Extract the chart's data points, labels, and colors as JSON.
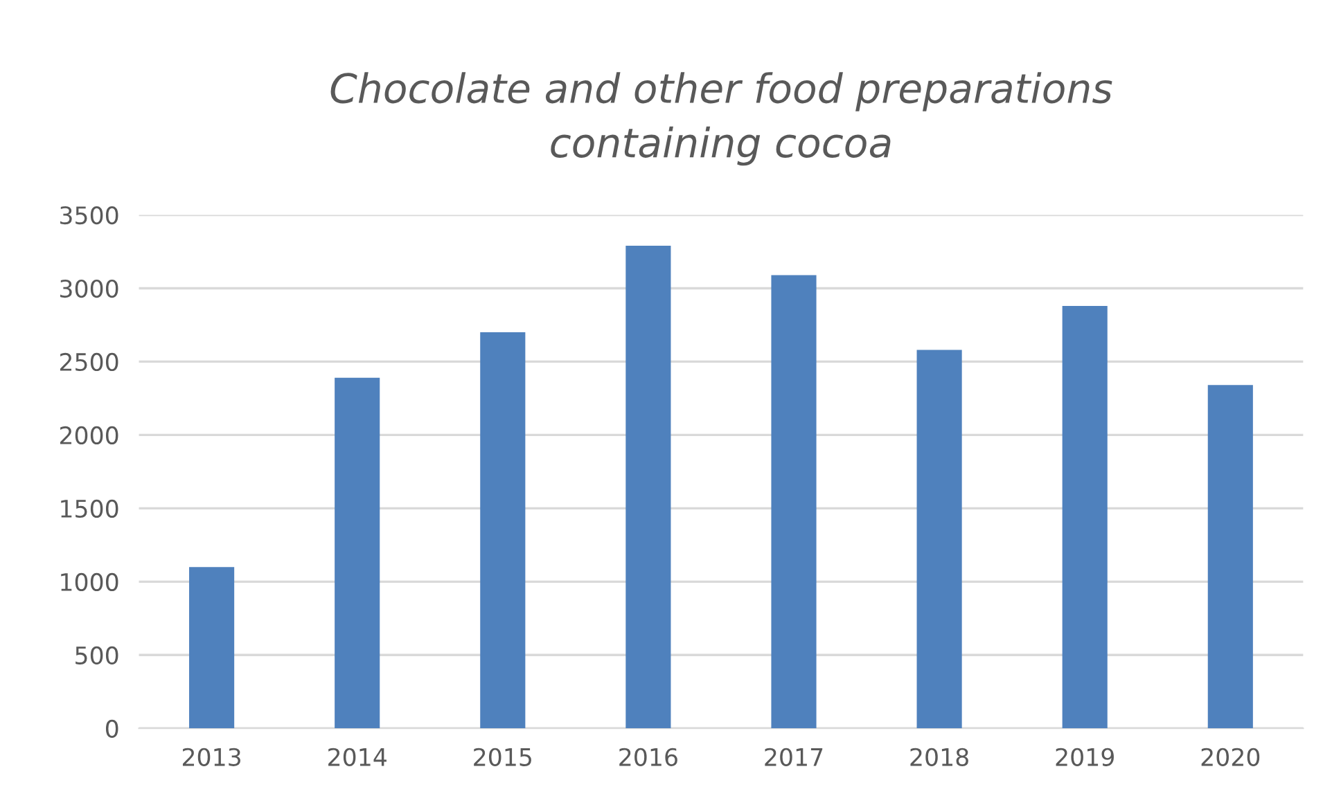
{
  "chart_data": {
    "type": "bar",
    "title": "Chocolate and other food preparations\ncontaining cocoa",
    "categories": [
      "2013",
      "2014",
      "2015",
      "2016",
      "2017",
      "2018",
      "2019",
      "2020"
    ],
    "values": [
      1100,
      2390,
      2700,
      3290,
      3090,
      2580,
      2880,
      2340
    ],
    "color": "#4f81bd",
    "ylim": [
      0,
      3500
    ],
    "yticks": [
      0,
      500,
      1000,
      1500,
      2000,
      2500,
      3000,
      3500
    ],
    "grid": "y",
    "legend": false
  }
}
